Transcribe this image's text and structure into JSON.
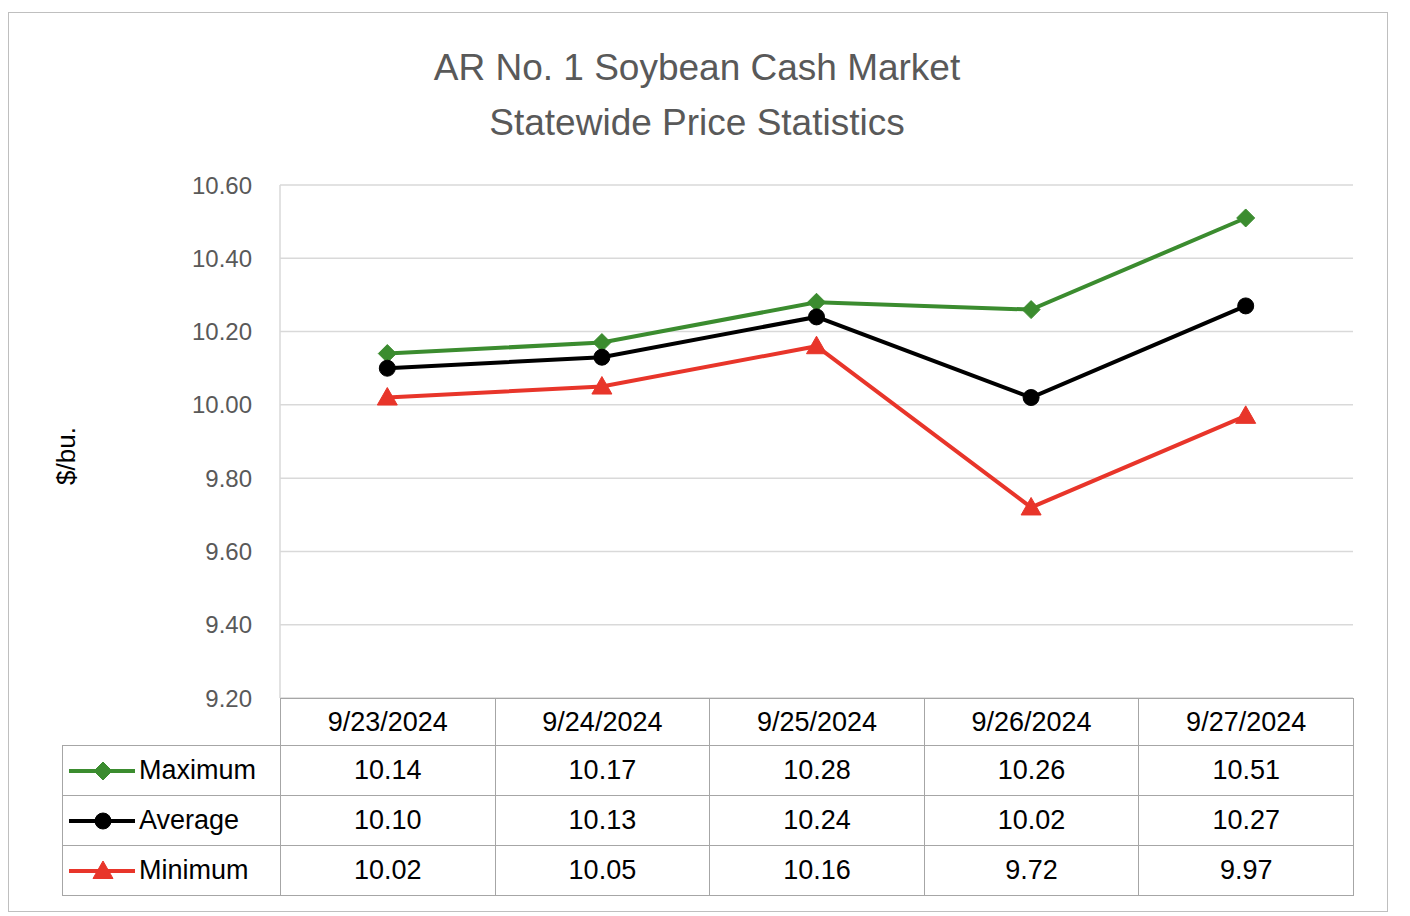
{
  "chart_data": {
    "type": "line",
    "title": "AR No. 1 Soybean Cash Market",
    "subtitle": "Statewide Price Statistics",
    "y_label": "$/bu.",
    "categories": [
      "9/23/2024",
      "9/24/2024",
      "9/25/2024",
      "9/26/2024",
      "9/27/2024"
    ],
    "ylim": [
      9.2,
      10.6
    ],
    "yticks": [
      {
        "value": 9.2,
        "label": "9.20"
      },
      {
        "value": 9.4,
        "label": "9.40"
      },
      {
        "value": 9.6,
        "label": "9.60"
      },
      {
        "value": 9.8,
        "label": "9.80"
      },
      {
        "value": 10,
        "label": "10.00"
      },
      {
        "value": 10.2,
        "label": "10.20"
      },
      {
        "value": 10.4,
        "label": "10.40"
      },
      {
        "value": 10.6,
        "label": "10.60"
      }
    ],
    "grid": true,
    "series": [
      {
        "name": "Maximum",
        "color": "#3b8c2f",
        "marker": "diamond",
        "values": [
          10.14,
          10.17,
          10.28,
          10.26,
          10.51
        ],
        "value_labels": [
          "10.14",
          "10.17",
          "10.28",
          "10.26",
          "10.51"
        ]
      },
      {
        "name": "Average",
        "color": "#000000",
        "marker": "circle",
        "values": [
          10.1,
          10.13,
          10.24,
          10.02,
          10.27
        ],
        "value_labels": [
          "10.10",
          "10.13",
          "10.24",
          "10.02",
          "10.27"
        ]
      },
      {
        "name": "Minimum",
        "color": "#e8352a",
        "marker": "triangle",
        "values": [
          10.02,
          10.05,
          10.16,
          9.72,
          9.97
        ],
        "value_labels": [
          "10.02",
          "10.05",
          "10.16",
          "9.72",
          "9.97"
        ]
      }
    ]
  }
}
